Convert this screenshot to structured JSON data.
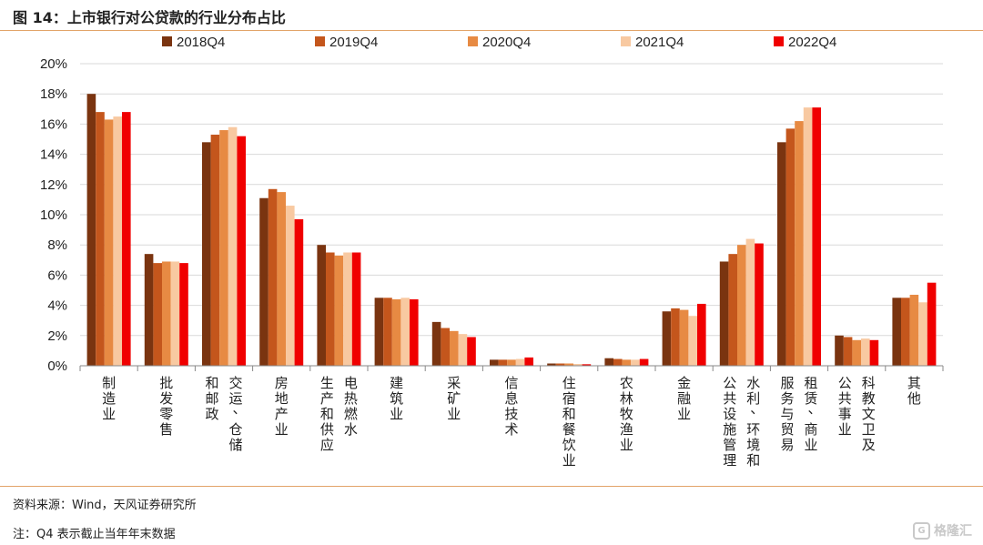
{
  "figure_title": "图 14：上市银行对公贷款的行业分布占比",
  "source_note": "资料来源：Wind，天风证券研究所",
  "q4_note": "注：Q4 表示截止当年年末数据",
  "watermark": {
    "icon": "gelonghui-logo-icon",
    "text": "格隆汇"
  },
  "colors": {
    "2018Q4": "#7a3410",
    "2019Q4": "#c4561c",
    "2020Q4": "#e78a43",
    "2021Q4": "#f8c9a1",
    "2022Q4": "#f00000",
    "rule": "#e2a469"
  },
  "chart_data": {
    "type": "bar",
    "title": "",
    "xlabel": "",
    "ylabel": "",
    "ylim": [
      0,
      20
    ],
    "y_ticks": [
      "0%",
      "2%",
      "4%",
      "6%",
      "8%",
      "10%",
      "12%",
      "14%",
      "16%",
      "18%",
      "20%"
    ],
    "grid": true,
    "legend_position": "top",
    "categories": [
      [
        "制造业"
      ],
      [
        "批发零售"
      ],
      [
        "交运、仓储",
        "和邮政"
      ],
      [
        "房地产业"
      ],
      [
        "电热燃水",
        "生产和供应"
      ],
      [
        "建筑业"
      ],
      [
        "采矿业"
      ],
      [
        "信息技术"
      ],
      [
        "住宿和餐饮业"
      ],
      [
        "农林牧渔业"
      ],
      [
        "金融业"
      ],
      [
        "水利、环境和",
        "公共设施管理"
      ],
      [
        "租赁、商业",
        "服务与贸易"
      ],
      [
        "科教文卫及",
        "公共事业"
      ],
      [
        "其他"
      ]
    ],
    "series": [
      {
        "name": "2018Q4",
        "values": [
          18.0,
          7.4,
          14.8,
          11.1,
          8.0,
          4.5,
          2.9,
          0.4,
          0.15,
          0.5,
          3.6,
          6.9,
          14.8,
          2.0,
          4.5
        ]
      },
      {
        "name": "2019Q4",
        "values": [
          16.8,
          6.8,
          15.3,
          11.7,
          7.5,
          4.5,
          2.5,
          0.4,
          0.15,
          0.45,
          3.8,
          7.4,
          15.7,
          1.9,
          4.5
        ]
      },
      {
        "name": "2020Q4",
        "values": [
          16.3,
          6.9,
          15.6,
          11.5,
          7.3,
          4.4,
          2.3,
          0.4,
          0.15,
          0.4,
          3.7,
          8.0,
          16.2,
          1.7,
          4.7
        ]
      },
      {
        "name": "2021Q4",
        "values": [
          16.5,
          6.9,
          15.8,
          10.6,
          7.5,
          4.5,
          2.1,
          0.45,
          0.12,
          0.4,
          3.3,
          8.4,
          17.1,
          1.8,
          4.2
        ]
      },
      {
        "name": "2022Q4",
        "values": [
          16.8,
          6.8,
          15.2,
          9.7,
          7.5,
          4.4,
          1.9,
          0.55,
          0.1,
          0.45,
          4.1,
          8.1,
          17.1,
          1.7,
          5.5
        ]
      }
    ]
  }
}
